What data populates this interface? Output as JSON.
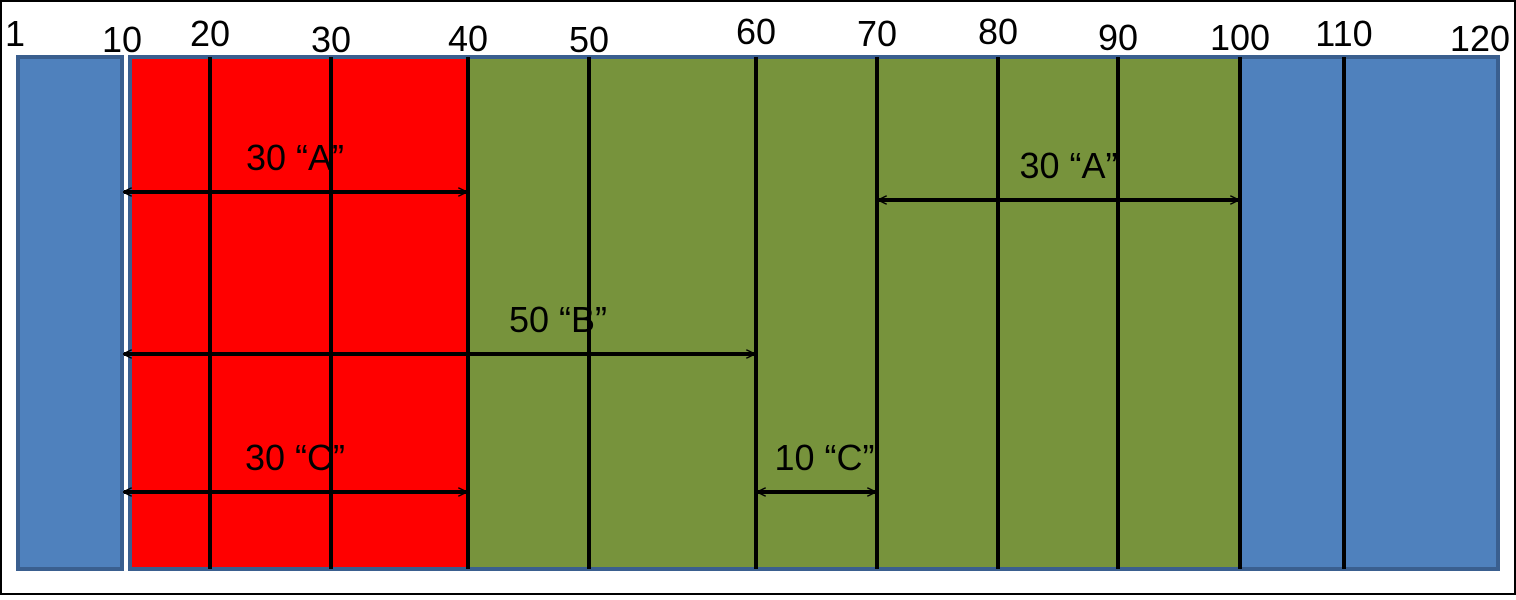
{
  "diagram": {
    "scale_labels": [
      "1",
      "10",
      "20",
      "30",
      "40",
      "50",
      "60",
      "70",
      "80",
      "90",
      "100",
      "110",
      "120"
    ],
    "segments": [
      {
        "name": "blue-left",
        "color": "#4f81bd",
        "from": 1,
        "to": 10
      },
      {
        "name": "red",
        "color": "#ff0000",
        "from": 10,
        "to": 40
      },
      {
        "name": "green",
        "color": "#77933c",
        "from": 40,
        "to": 100
      },
      {
        "name": "blue-right",
        "color": "#4f81bd",
        "from": 100,
        "to": 120
      }
    ],
    "gridlines": [
      20,
      30,
      40,
      50,
      60,
      70,
      80,
      90,
      100,
      110
    ],
    "arrows": [
      {
        "label": "30 “A”",
        "from": 10,
        "to": 40,
        "row": 1
      },
      {
        "label": "30 “A”",
        "from": 70,
        "to": 100,
        "row": 1
      },
      {
        "label": "50 “B”",
        "from": 10,
        "to": 60,
        "row": 2
      },
      {
        "label": "30 “C”",
        "from": 10,
        "to": 40,
        "row": 3
      },
      {
        "label": "10 “C”",
        "from": 60,
        "to": 70,
        "row": 3
      }
    ],
    "colors": {
      "border": "#3a5f8f",
      "line": "#000000",
      "text": "#000000"
    }
  }
}
